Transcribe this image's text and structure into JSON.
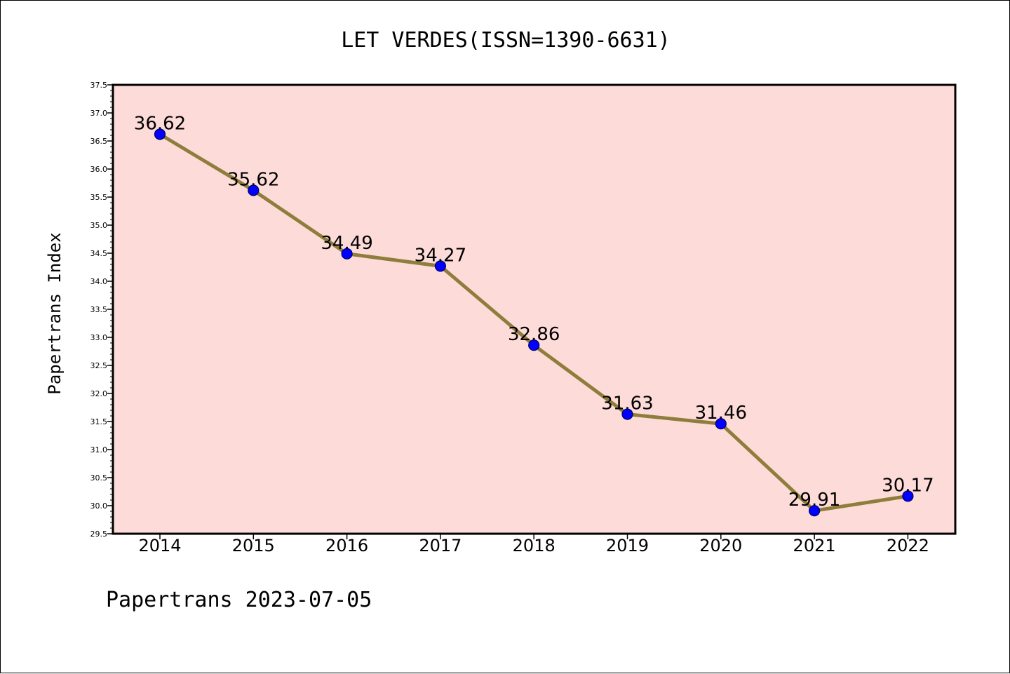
{
  "chart_data": {
    "type": "line",
    "title": "LET VERDES(ISSN=1390-6631)",
    "ylabel": "Papertrans Index",
    "xlabel": "",
    "footer": "Papertrans 2023-07-05",
    "categories": [
      "2014",
      "2015",
      "2016",
      "2017",
      "2018",
      "2019",
      "2020",
      "2021",
      "2022"
    ],
    "series": [
      {
        "values": [
          36.62,
          35.62,
          34.49,
          34.27,
          32.86,
          31.63,
          31.46,
          29.91,
          30.17
        ],
        "labels": [
          "36.62",
          "35.62",
          "34.49",
          "34.27",
          "32.86",
          "31.63",
          "31.46",
          "29.91",
          "30.17"
        ]
      }
    ],
    "ylim": [
      29.5,
      37.5
    ],
    "yticks": [
      "29.5",
      "30.0",
      "30.5",
      "31.0",
      "31.5",
      "32.0",
      "32.5",
      "33.0",
      "33.5",
      "34.0",
      "34.5",
      "35.0",
      "35.5",
      "36.0",
      "36.5",
      "37.0",
      "37.5"
    ],
    "grid": false,
    "colors": {
      "plot_background": "#fddbd9",
      "line": "#8e7d3b",
      "marker": "#0000ff",
      "marker_edge": "#000066"
    }
  }
}
